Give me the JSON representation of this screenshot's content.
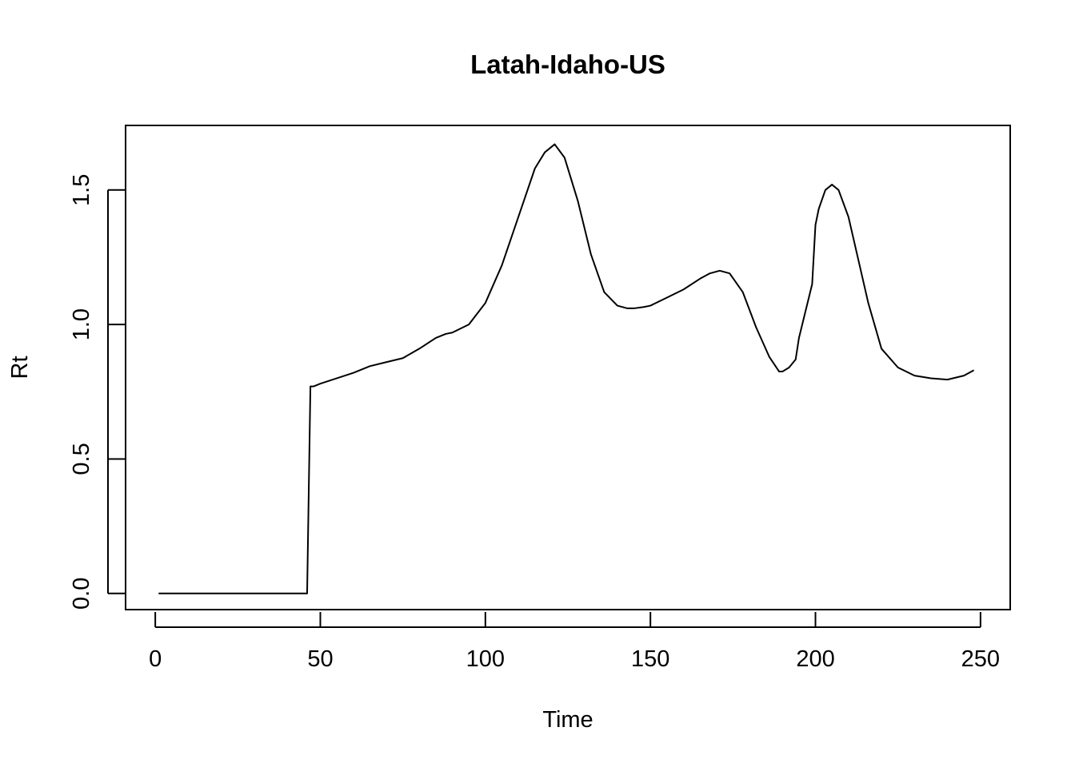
{
  "chart_data": {
    "type": "line",
    "title": "Latah-Idaho-US",
    "xlabel": "Time",
    "ylabel": "Rt",
    "xlim": [
      -9,
      259
    ],
    "ylim": [
      -0.06,
      1.74
    ],
    "xticks": [
      0,
      50,
      100,
      150,
      200,
      250
    ],
    "yticks": [
      0.0,
      0.5,
      1.0,
      1.5
    ],
    "xtick_labels": [
      "0",
      "50",
      "100",
      "150",
      "200",
      "250"
    ],
    "ytick_labels": [
      "0.0",
      "0.5",
      "1.0",
      "1.5"
    ],
    "grid": false,
    "series": [
      {
        "x": [
          1,
          10,
          20,
          30,
          40,
          46,
          47,
          48,
          50,
          55,
          60,
          65,
          70,
          75,
          80,
          85,
          88,
          90,
          95,
          100,
          105,
          110,
          115,
          118,
          121,
          124,
          128,
          132,
          136,
          140,
          143,
          145,
          148,
          150,
          155,
          160,
          165,
          168,
          171,
          174,
          178,
          182,
          186,
          189,
          190,
          192,
          194,
          195,
          197,
          199,
          200,
          201,
          203,
          205,
          207,
          210,
          213,
          216,
          220,
          225,
          230,
          235,
          240,
          245,
          248
        ],
        "y": [
          0.0,
          0.0,
          0.0,
          0.0,
          0.0,
          0.0,
          0.77,
          0.77,
          0.78,
          0.8,
          0.82,
          0.845,
          0.86,
          0.875,
          0.91,
          0.95,
          0.965,
          0.97,
          1.0,
          1.08,
          1.22,
          1.4,
          1.58,
          1.64,
          1.67,
          1.62,
          1.46,
          1.26,
          1.12,
          1.07,
          1.06,
          1.06,
          1.065,
          1.07,
          1.1,
          1.13,
          1.17,
          1.19,
          1.2,
          1.19,
          1.12,
          0.99,
          0.88,
          0.825,
          0.825,
          0.84,
          0.87,
          0.95,
          1.05,
          1.15,
          1.37,
          1.43,
          1.5,
          1.52,
          1.5,
          1.4,
          1.24,
          1.08,
          0.91,
          0.84,
          0.81,
          0.8,
          0.795,
          0.81,
          0.83
        ]
      }
    ]
  }
}
